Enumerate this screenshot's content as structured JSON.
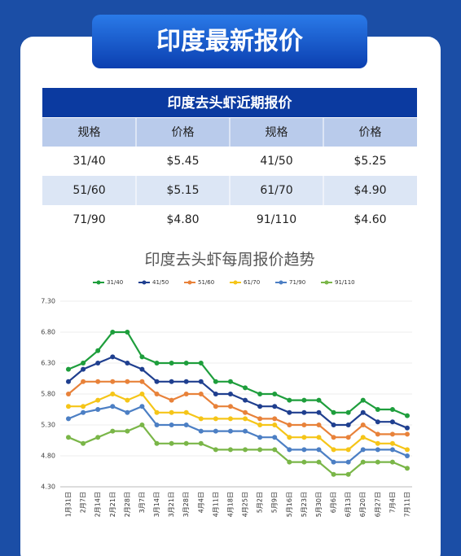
{
  "header": {
    "title": "印度最新报价"
  },
  "table": {
    "title": "印度去头虾近期报价",
    "columns": [
      "规格",
      "价格",
      "规格",
      "价格"
    ],
    "rows": [
      [
        "31/40",
        "$5.45",
        "41/50",
        "$5.25"
      ],
      [
        "51/60",
        "$5.15",
        "61/70",
        "$4.90"
      ],
      [
        "71/90",
        "$4.80",
        "91/110",
        "$4.60"
      ]
    ]
  },
  "chart_data": {
    "type": "line",
    "title": "印度去头虾每周报价趋势",
    "categories": [
      "1月31日",
      "2月7日",
      "2月14日",
      "2月21日",
      "2月28日",
      "3月7日",
      "3月14日",
      "3月21日",
      "3月28日",
      "4月4日",
      "4月11日",
      "4月18日",
      "4月25日",
      "5月2日",
      "5月9日",
      "5月16日",
      "5月23日",
      "5月30日",
      "6月6日",
      "6月13日",
      "6月20日",
      "6月27日",
      "7月4日",
      "7月11日"
    ],
    "series": [
      {
        "name": "31/40",
        "color": "#1e9e3c",
        "values": [
          6.2,
          6.3,
          6.5,
          6.8,
          6.8,
          6.4,
          6.3,
          6.3,
          6.3,
          6.3,
          6.0,
          6.0,
          5.9,
          5.8,
          5.8,
          5.7,
          5.7,
          5.7,
          5.5,
          5.5,
          5.7,
          5.55,
          5.55,
          5.45
        ]
      },
      {
        "name": "41/50",
        "color": "#1f3f8f",
        "values": [
          6.0,
          6.2,
          6.3,
          6.4,
          6.3,
          6.2,
          6.0,
          6.0,
          6.0,
          6.0,
          5.8,
          5.8,
          5.7,
          5.6,
          5.6,
          5.5,
          5.5,
          5.5,
          5.3,
          5.3,
          5.5,
          5.35,
          5.35,
          5.25
        ]
      },
      {
        "name": "51/60",
        "color": "#e8823a",
        "values": [
          5.8,
          6.0,
          6.0,
          6.0,
          6.0,
          6.0,
          5.8,
          5.7,
          5.8,
          5.8,
          5.6,
          5.6,
          5.5,
          5.4,
          5.4,
          5.3,
          5.3,
          5.3,
          5.1,
          5.1,
          5.3,
          5.15,
          5.15,
          5.15
        ]
      },
      {
        "name": "61/70",
        "color": "#f5c518",
        "values": [
          5.6,
          5.6,
          5.7,
          5.8,
          5.7,
          5.8,
          5.5,
          5.5,
          5.5,
          5.4,
          5.4,
          5.4,
          5.4,
          5.3,
          5.3,
          5.1,
          5.1,
          5.1,
          4.9,
          4.9,
          5.1,
          5.0,
          5.0,
          4.9
        ]
      },
      {
        "name": "71/90",
        "color": "#4c7fc4",
        "values": [
          5.4,
          5.5,
          5.55,
          5.6,
          5.5,
          5.6,
          5.3,
          5.3,
          5.3,
          5.2,
          5.2,
          5.2,
          5.2,
          5.1,
          5.1,
          4.9,
          4.9,
          4.9,
          4.7,
          4.7,
          4.9,
          4.9,
          4.9,
          4.8
        ]
      },
      {
        "name": "91/110",
        "color": "#7ab648",
        "values": [
          5.1,
          5.0,
          5.1,
          5.2,
          5.2,
          5.3,
          5.0,
          5.0,
          5.0,
          5.0,
          4.9,
          4.9,
          4.9,
          4.9,
          4.9,
          4.7,
          4.7,
          4.7,
          4.5,
          4.5,
          4.7,
          4.7,
          4.7,
          4.6
        ]
      }
    ],
    "ylim": [
      4.3,
      7.3
    ],
    "yticks": [
      {
        "value": 4.3,
        "label": "4.30"
      },
      {
        "value": 4.8,
        "label": "4.80"
      },
      {
        "value": 5.3,
        "label": "5.30"
      },
      {
        "value": 5.8,
        "label": "5.80"
      },
      {
        "value": 6.3,
        "label": "6.30"
      },
      {
        "value": 6.8,
        "label": "6.80"
      },
      {
        "value": 7.3,
        "label": "7.30"
      }
    ],
    "grid": true,
    "legend": "top"
  }
}
